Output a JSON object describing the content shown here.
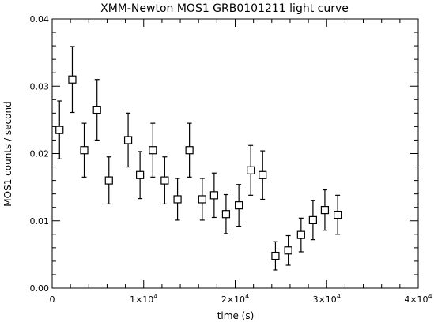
{
  "chart_data": {
    "type": "scatter",
    "title": "XMM-Newton MOS1 GRB0101211 light curve",
    "xlabel": "time (s)",
    "ylabel": "MOS1 counts / second",
    "xlim": [
      0,
      40000
    ],
    "ylim": [
      0.0,
      0.04
    ],
    "grid": false,
    "legend": "none",
    "x_ticks": [
      {
        "value": 0,
        "label": "0"
      },
      {
        "value": 10000,
        "label": "1×10",
        "exp": "4"
      },
      {
        "value": 20000,
        "label": "2×10",
        "exp": "4"
      },
      {
        "value": 30000,
        "label": "3×10",
        "exp": "4"
      },
      {
        "value": 40000,
        "label": "4×10",
        "exp": "4"
      }
    ],
    "y_ticks": [
      {
        "value": 0.0,
        "label": "0.00"
      },
      {
        "value": 0.01,
        "label": "0.01"
      },
      {
        "value": 0.02,
        "label": "0.02"
      },
      {
        "value": 0.03,
        "label": "0.03"
      },
      {
        "value": 0.04,
        "label": "0.04"
      }
    ],
    "series": [
      {
        "marker": "open-square",
        "color": "#000000",
        "points": [
          {
            "x": 800,
            "y": 0.0235,
            "err": 0.0043
          },
          {
            "x": 2200,
            "y": 0.031,
            "err": 0.0049
          },
          {
            "x": 3500,
            "y": 0.0205,
            "err": 0.004
          },
          {
            "x": 4900,
            "y": 0.0265,
            "err": 0.0045
          },
          {
            "x": 6200,
            "y": 0.016,
            "err": 0.0035
          },
          {
            "x": 8300,
            "y": 0.022,
            "err": 0.004
          },
          {
            "x": 9600,
            "y": 0.0168,
            "err": 0.0035
          },
          {
            "x": 11000,
            "y": 0.0205,
            "err": 0.004
          },
          {
            "x": 12300,
            "y": 0.016,
            "err": 0.0035
          },
          {
            "x": 13700,
            "y": 0.0132,
            "err": 0.0031
          },
          {
            "x": 15000,
            "y": 0.0205,
            "err": 0.004
          },
          {
            "x": 16400,
            "y": 0.0132,
            "err": 0.0031
          },
          {
            "x": 17700,
            "y": 0.0138,
            "err": 0.0033
          },
          {
            "x": 19000,
            "y": 0.011,
            "err": 0.0029
          },
          {
            "x": 20400,
            "y": 0.0123,
            "err": 0.0031
          },
          {
            "x": 21700,
            "y": 0.0175,
            "err": 0.0037
          },
          {
            "x": 23000,
            "y": 0.0168,
            "err": 0.0036
          },
          {
            "x": 24400,
            "y": 0.0048,
            "err": 0.0021
          },
          {
            "x": 25800,
            "y": 0.0056,
            "err": 0.0022
          },
          {
            "x": 27200,
            "y": 0.0079,
            "err": 0.0025
          },
          {
            "x": 28500,
            "y": 0.0101,
            "err": 0.0029
          },
          {
            "x": 29800,
            "y": 0.0116,
            "err": 0.003
          },
          {
            "x": 31200,
            "y": 0.0109,
            "err": 0.0029
          }
        ]
      }
    ]
  }
}
